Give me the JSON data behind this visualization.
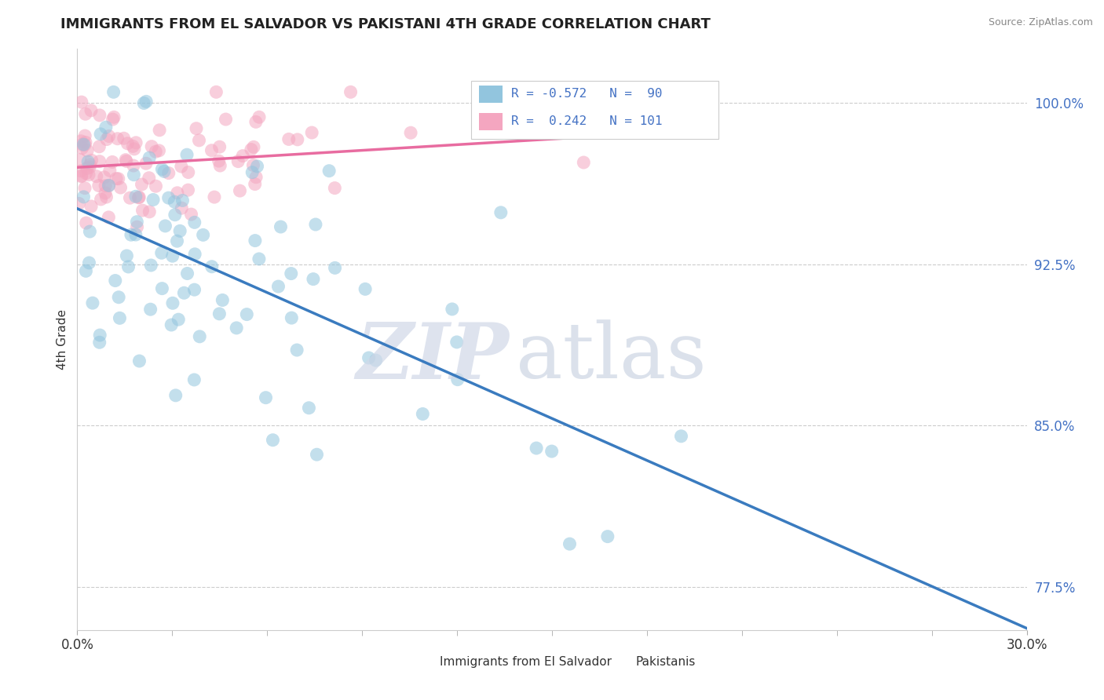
{
  "title": "IMMIGRANTS FROM EL SALVADOR VS PAKISTANI 4TH GRADE CORRELATION CHART",
  "source": "Source: ZipAtlas.com",
  "ylabel": "4th Grade",
  "xlim": [
    0.0,
    30.0
  ],
  "ylim": [
    75.5,
    102.5
  ],
  "yticks": [
    77.5,
    85.0,
    92.5,
    100.0
  ],
  "ytick_labels": [
    "77.5%",
    "85.0%",
    "92.5%",
    "100.0%"
  ],
  "blue_color": "#92c5de",
  "pink_color": "#f4a6c0",
  "blue_line_color": "#3a7bbf",
  "pink_line_color": "#e86ca0",
  "blue_r": -0.572,
  "blue_n": 90,
  "pink_r": 0.242,
  "pink_n": 101,
  "legend_line1": "R = -0.572   N =  90",
  "legend_line2": "R =  0.242   N = 101",
  "legend_blue_color": "#92c5de",
  "legend_pink_color": "#f4a6c0",
  "watermark_zip": "ZIP",
  "watermark_atlas": "atlas",
  "legend_label_blue": "Immigrants from El Salvador",
  "legend_label_pink": "Pakistanis"
}
